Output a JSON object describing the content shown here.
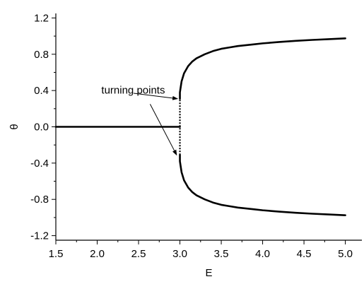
{
  "chart_data": {
    "type": "line",
    "title": "",
    "xlabel": "E",
    "ylabel": "θ",
    "xlim": [
      1.5,
      5.2
    ],
    "ylim": [
      -1.25,
      1.25
    ],
    "xticks": [
      "1.5",
      "2.0",
      "2.5",
      "3.0",
      "3.5",
      "4.0",
      "4.5",
      "5.0"
    ],
    "yticks": [
      "-1.2",
      "-0.8",
      "-0.4",
      "0.0",
      "0.4",
      "0.8",
      "1.2"
    ],
    "grid": false,
    "legend": "none",
    "series": [
      {
        "style": "solid",
        "x": [
          1.5,
          3.0
        ],
        "y": [
          0.0,
          0.0
        ]
      },
      {
        "style": "solid",
        "x": [
          3.0,
          3.0,
          3.01,
          3.02,
          3.05,
          3.1,
          3.15,
          3.2,
          3.3,
          3.4,
          3.5,
          3.6,
          3.7,
          3.8,
          3.9,
          4.0,
          4.2,
          4.4,
          4.6,
          4.8,
          5.0
        ],
        "y": [
          0.31,
          0.38,
          0.44,
          0.5,
          0.59,
          0.67,
          0.72,
          0.755,
          0.8,
          0.835,
          0.86,
          0.875,
          0.89,
          0.9,
          0.91,
          0.92,
          0.935,
          0.948,
          0.958,
          0.966,
          0.975
        ]
      },
      {
        "style": "solid",
        "x": [
          3.0,
          3.0,
          3.01,
          3.02,
          3.05,
          3.1,
          3.15,
          3.2,
          3.3,
          3.4,
          3.5,
          3.6,
          3.7,
          3.8,
          3.9,
          4.0,
          4.2,
          4.4,
          4.6,
          4.8,
          5.0
        ],
        "y": [
          -0.31,
          -0.38,
          -0.44,
          -0.5,
          -0.59,
          -0.67,
          -0.72,
          -0.755,
          -0.8,
          -0.835,
          -0.86,
          -0.875,
          -0.89,
          -0.9,
          -0.91,
          -0.92,
          -0.935,
          -0.948,
          -0.958,
          -0.966,
          -0.975
        ]
      },
      {
        "style": "dotted",
        "x": [
          3.0,
          3.0
        ],
        "y": [
          -0.31,
          0.31
        ]
      }
    ],
    "annotations": [
      {
        "text": "turning points",
        "text_x": 2.82,
        "text_y": 0.365,
        "arrows": [
          {
            "from": [
              2.44,
              0.37
            ],
            "to": [
              2.97,
              0.31
            ]
          },
          {
            "from": [
              2.64,
              0.25
            ],
            "to": [
              2.96,
              -0.31
            ]
          }
        ]
      }
    ]
  }
}
